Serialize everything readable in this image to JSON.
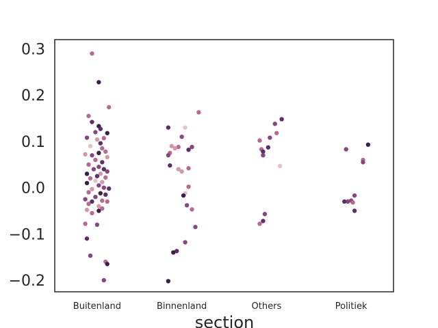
{
  "chart_data": {
    "type": "scatter",
    "xlabel": "section",
    "ylabel": "",
    "categories": [
      "Buitenland",
      "Binnenland",
      "Others",
      "Politiek"
    ],
    "ylim": [
      -0.225,
      0.32
    ],
    "yticks": [
      -0.2,
      -0.1,
      0.0,
      0.1,
      0.2,
      0.3
    ],
    "ytick_labels": [
      "−0.2",
      "−0.1",
      "0.0",
      "0.1",
      "0.2",
      "0.3"
    ],
    "grid": false,
    "legend": "none",
    "palette": [
      "#e9bfc7",
      "#d596ab",
      "#b46a92",
      "#86467f",
      "#5a2f63",
      "#3a1f48"
    ],
    "series": [
      {
        "category": "Buitenland",
        "points": [
          [
            -0.06,
            0.29,
            2
          ],
          [
            0.02,
            0.228,
            5
          ],
          [
            0.14,
            0.174,
            2
          ],
          [
            -0.1,
            0.155,
            2
          ],
          [
            -0.06,
            0.142,
            4
          ],
          [
            0.02,
            0.133,
            5
          ],
          [
            0.04,
            0.127,
            4
          ],
          [
            -0.02,
            0.12,
            3
          ],
          [
            0.12,
            0.118,
            5
          ],
          [
            -0.12,
            0.108,
            3
          ],
          [
            0.08,
            0.107,
            2
          ],
          [
            0.0,
            0.104,
            1
          ],
          [
            0.04,
            0.096,
            4
          ],
          [
            -0.08,
            0.09,
            0
          ],
          [
            0.06,
            0.085,
            2
          ],
          [
            0.1,
            0.078,
            2
          ],
          [
            0.02,
            0.075,
            5
          ],
          [
            -0.14,
            0.072,
            1
          ],
          [
            -0.06,
            0.07,
            3
          ],
          [
            0.12,
            0.066,
            1
          ],
          [
            -0.02,
            0.06,
            2
          ],
          [
            0.06,
            0.055,
            4
          ],
          [
            -0.1,
            0.05,
            2
          ],
          [
            0.02,
            0.045,
            3
          ],
          [
            0.08,
            0.04,
            4
          ],
          [
            -0.04,
            0.04,
            3
          ],
          [
            0.12,
            0.035,
            3
          ],
          [
            -0.12,
            0.03,
            5
          ],
          [
            0.04,
            0.03,
            1
          ],
          [
            0.0,
            0.025,
            4
          ],
          [
            -0.08,
            0.02,
            2
          ],
          [
            0.1,
            0.022,
            2
          ],
          [
            -0.02,
            0.015,
            0
          ],
          [
            0.06,
            0.012,
            1
          ],
          [
            -0.12,
            0.01,
            5
          ],
          [
            0.02,
            0.005,
            3
          ],
          [
            0.08,
            0.0,
            3
          ],
          [
            -0.06,
            -0.003,
            1
          ],
          [
            0.14,
            -0.002,
            4
          ],
          [
            -0.1,
            -0.01,
            2
          ],
          [
            0.04,
            -0.012,
            5
          ],
          [
            0.1,
            -0.015,
            4
          ],
          [
            -0.02,
            -0.02,
            3
          ],
          [
            -0.14,
            -0.025,
            3
          ],
          [
            0.06,
            -0.028,
            2
          ],
          [
            -0.06,
            -0.03,
            4
          ],
          [
            0.12,
            -0.03,
            2
          ],
          [
            -0.1,
            -0.035,
            2
          ],
          [
            0.02,
            -0.04,
            1
          ],
          [
            0.06,
            -0.045,
            2
          ],
          [
            -0.12,
            -0.048,
            1
          ],
          [
            0.02,
            -0.05,
            5
          ],
          [
            -0.06,
            -0.055,
            2
          ],
          [
            -0.14,
            -0.078,
            2
          ],
          [
            0.0,
            -0.08,
            3
          ],
          [
            -0.12,
            -0.11,
            4
          ],
          [
            -0.08,
            -0.147,
            3
          ],
          [
            0.1,
            -0.16,
            2
          ],
          [
            0.12,
            -0.165,
            5
          ],
          [
            0.08,
            -0.2,
            3
          ]
        ]
      },
      {
        "category": "Binnenland",
        "points": [
          [
            0.2,
            0.163,
            2
          ],
          [
            -0.16,
            0.13,
            4
          ],
          [
            0.04,
            0.13,
            0
          ],
          [
            0.0,
            0.11,
            3
          ],
          [
            -0.12,
            0.09,
            1
          ],
          [
            0.12,
            0.088,
            3
          ],
          [
            -0.04,
            0.088,
            2
          ],
          [
            0.08,
            0.082,
            4
          ],
          [
            -0.08,
            0.085,
            1
          ],
          [
            -0.14,
            0.075,
            2
          ],
          [
            -0.16,
            0.07,
            3
          ],
          [
            -0.14,
            0.048,
            4
          ],
          [
            0.08,
            0.042,
            2
          ],
          [
            -0.04,
            0.04,
            1
          ],
          [
            0.0,
            0.035,
            1
          ],
          [
            0.08,
            0.002,
            2
          ],
          [
            0.04,
            -0.012,
            0
          ],
          [
            0.02,
            -0.017,
            5
          ],
          [
            0.06,
            -0.038,
            3
          ],
          [
            0.12,
            -0.047,
            2
          ],
          [
            0.16,
            -0.085,
            3
          ],
          [
            0.04,
            -0.118,
            3
          ],
          [
            -0.06,
            -0.137,
            4
          ],
          [
            -0.1,
            -0.14,
            5
          ],
          [
            -0.16,
            -0.202,
            5
          ]
        ]
      },
      {
        "category": "Others",
        "points": [
          [
            0.18,
            0.148,
            4
          ],
          [
            0.1,
            0.138,
            3
          ],
          [
            0.12,
            0.118,
            2
          ],
          [
            0.04,
            0.108,
            3
          ],
          [
            -0.08,
            0.102,
            2
          ],
          [
            0.02,
            0.087,
            4
          ],
          [
            -0.06,
            0.083,
            2
          ],
          [
            -0.04,
            0.078,
            4
          ],
          [
            -0.04,
            0.07,
            3
          ],
          [
            0.16,
            0.047,
            0
          ],
          [
            -0.02,
            -0.057,
            3
          ],
          [
            -0.04,
            -0.072,
            4
          ],
          [
            -0.08,
            -0.078,
            2
          ]
        ]
      },
      {
        "category": "Politiek",
        "points": [
          [
            0.2,
            0.093,
            5
          ],
          [
            -0.06,
            0.083,
            3
          ],
          [
            0.14,
            0.06,
            2
          ],
          [
            0.14,
            0.055,
            3
          ],
          [
            0.04,
            -0.017,
            3
          ],
          [
            -0.04,
            -0.03,
            3
          ],
          [
            -0.08,
            -0.03,
            4
          ],
          [
            0.0,
            -0.028,
            3
          ],
          [
            0.02,
            -0.032,
            2
          ],
          [
            0.04,
            -0.05,
            4
          ]
        ]
      }
    ]
  }
}
